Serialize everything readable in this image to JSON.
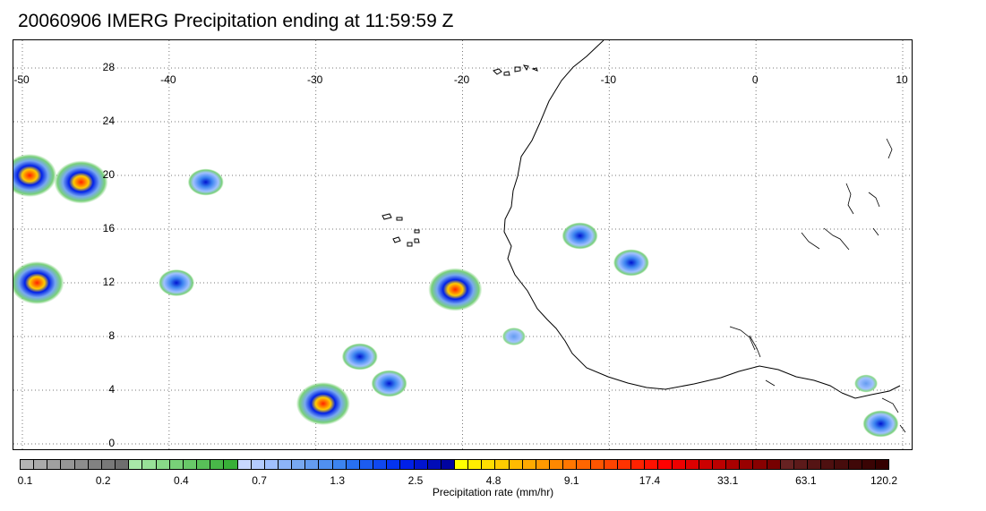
{
  "title": "20060906 IMERG Precipitation ending at 11:59:59 Z",
  "map": {
    "lon_ticks": [
      "-50",
      "-40",
      "-30",
      "-20",
      "-10",
      "0",
      "10"
    ],
    "lat_ticks": [
      "28",
      "24",
      "20",
      "16",
      "12",
      "8",
      "4",
      "0"
    ],
    "lon_range": [
      -50,
      10
    ],
    "lat_range": [
      -0.5,
      29.5
    ],
    "grid": "dotted",
    "coastline_color": "#000000"
  },
  "colorbar": {
    "label": "Precipitation rate (mm/hr)",
    "tick_labels": [
      "0.1",
      "0.2",
      "0.4",
      "0.7",
      "1.3",
      "2.5",
      "4.8",
      "9.1",
      "17.4",
      "33.1",
      "63.1",
      "120.2"
    ],
    "colors": [
      "#b4b4b4",
      "#aaaaaa",
      "#a0a0a0",
      "#969696",
      "#8c8c8c",
      "#828282",
      "#787878",
      "#6e6e6e",
      "#a8e8a8",
      "#98e098",
      "#88d888",
      "#78d078",
      "#68c868",
      "#58c058",
      "#48b848",
      "#38b038",
      "#c8d8ff",
      "#b4ccff",
      "#a0c0ff",
      "#8cb4f8",
      "#78a8f0",
      "#649cf0",
      "#5090f0",
      "#3c84f0",
      "#2870f0",
      "#1c5cf0",
      "#1048f0",
      "#0434f0",
      "#0020e8",
      "#0014d0",
      "#000cb8",
      "#0004a0",
      "#ffff00",
      "#ffee00",
      "#ffdd00",
      "#ffcc00",
      "#ffbb00",
      "#ffaa00",
      "#ff9900",
      "#ff8800",
      "#ff7700",
      "#ff6600",
      "#ff5500",
      "#ff4400",
      "#ff3300",
      "#ff2200",
      "#ff1100",
      "#ff0000",
      "#ee0000",
      "#dd0000",
      "#cc0000",
      "#bb0000",
      "#aa0000",
      "#990000",
      "#880000",
      "#770000",
      "#662222",
      "#5c1a1a",
      "#551414",
      "#4e1010",
      "#470c0c",
      "#400808",
      "#3a0404",
      "#340000"
    ]
  },
  "rain_cells": [
    {
      "lon": -49.5,
      "lat": 20.0,
      "peak": "heavy"
    },
    {
      "lon": -46.0,
      "lat": 19.5,
      "peak": "heavy"
    },
    {
      "lon": -49.0,
      "lat": 12.0,
      "peak": "heavy"
    },
    {
      "lon": -37.5,
      "lat": 19.5,
      "peak": "moderate"
    },
    {
      "lon": -39.5,
      "lat": 12.0,
      "peak": "moderate"
    },
    {
      "lon": -27.0,
      "lat": 6.5,
      "peak": "moderate"
    },
    {
      "lon": -29.5,
      "lat": 3.0,
      "peak": "heavy"
    },
    {
      "lon": -25.0,
      "lat": 4.5,
      "peak": "moderate"
    },
    {
      "lon": -20.5,
      "lat": 11.5,
      "peak": "heavy"
    },
    {
      "lon": -12.0,
      "lat": 15.5,
      "peak": "moderate"
    },
    {
      "lon": -8.5,
      "lat": 13.5,
      "peak": "moderate"
    },
    {
      "lon": -16.5,
      "lat": 8.0,
      "peak": "light"
    },
    {
      "lon": 8.5,
      "lat": 1.5,
      "peak": "moderate"
    },
    {
      "lon": 7.5,
      "lat": 4.5,
      "peak": "light"
    }
  ]
}
